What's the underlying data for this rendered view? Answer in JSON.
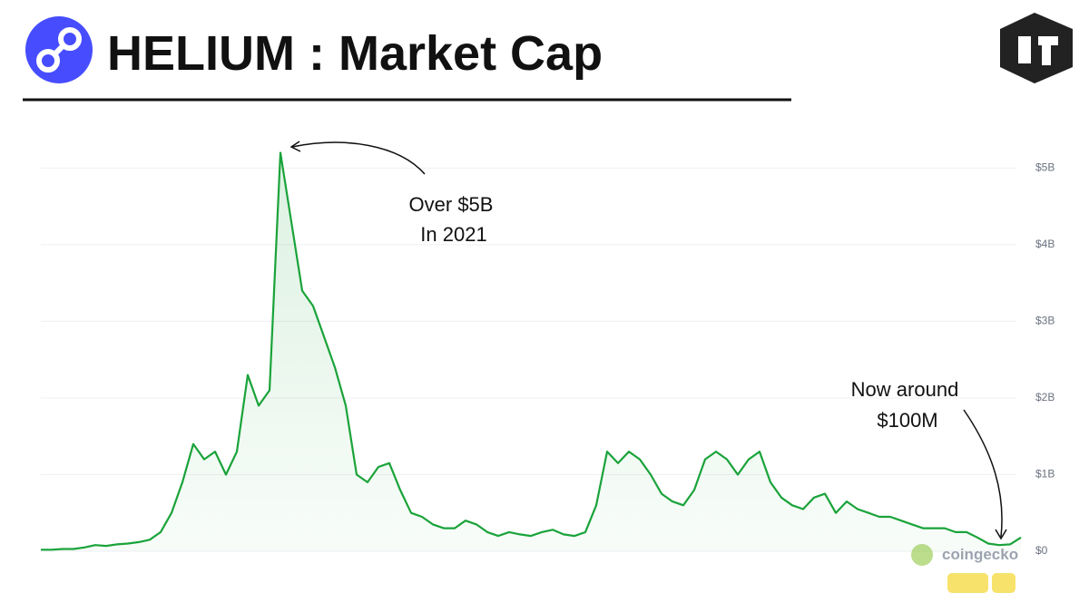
{
  "chart_data": {
    "type": "line",
    "title": "HELIUM : Market Cap",
    "annotations": [
      "Over $5B",
      "In 2021",
      "Now around",
      "$100M"
    ],
    "watermark": "coingecko",
    "color": "#1aa33a",
    "grid": true,
    "ylim": [
      0,
      5.3
    ],
    "yticks": [
      {
        "value": 0,
        "label": "$0"
      },
      {
        "value": 1,
        "label": "$1B"
      },
      {
        "value": 2,
        "label": "$2B"
      },
      {
        "value": 3,
        "label": "$3B"
      },
      {
        "value": 4,
        "label": "$4B"
      },
      {
        "value": 5,
        "label": "$5B"
      }
    ],
    "values": [
      0.02,
      0.02,
      0.03,
      0.03,
      0.05,
      0.08,
      0.07,
      0.09,
      0.1,
      0.12,
      0.15,
      0.25,
      0.5,
      0.9,
      1.4,
      1.2,
      1.3,
      1.0,
      1.3,
      2.3,
      1.9,
      2.1,
      5.2,
      4.3,
      3.4,
      3.2,
      2.8,
      2.4,
      1.9,
      1.0,
      0.9,
      1.1,
      1.15,
      0.8,
      0.5,
      0.45,
      0.35,
      0.3,
      0.3,
      0.4,
      0.35,
      0.25,
      0.2,
      0.25,
      0.22,
      0.2,
      0.25,
      0.28,
      0.22,
      0.2,
      0.25,
      0.6,
      1.3,
      1.15,
      1.3,
      1.2,
      1.0,
      0.75,
      0.65,
      0.6,
      0.8,
      1.2,
      1.3,
      1.2,
      1.0,
      1.2,
      1.3,
      0.9,
      0.7,
      0.6,
      0.55,
      0.7,
      0.75,
      0.5,
      0.65,
      0.55,
      0.5,
      0.45,
      0.45,
      0.4,
      0.35,
      0.3,
      0.3,
      0.3,
      0.25,
      0.25,
      0.18,
      0.1,
      0.08,
      0.09,
      0.18
    ]
  }
}
